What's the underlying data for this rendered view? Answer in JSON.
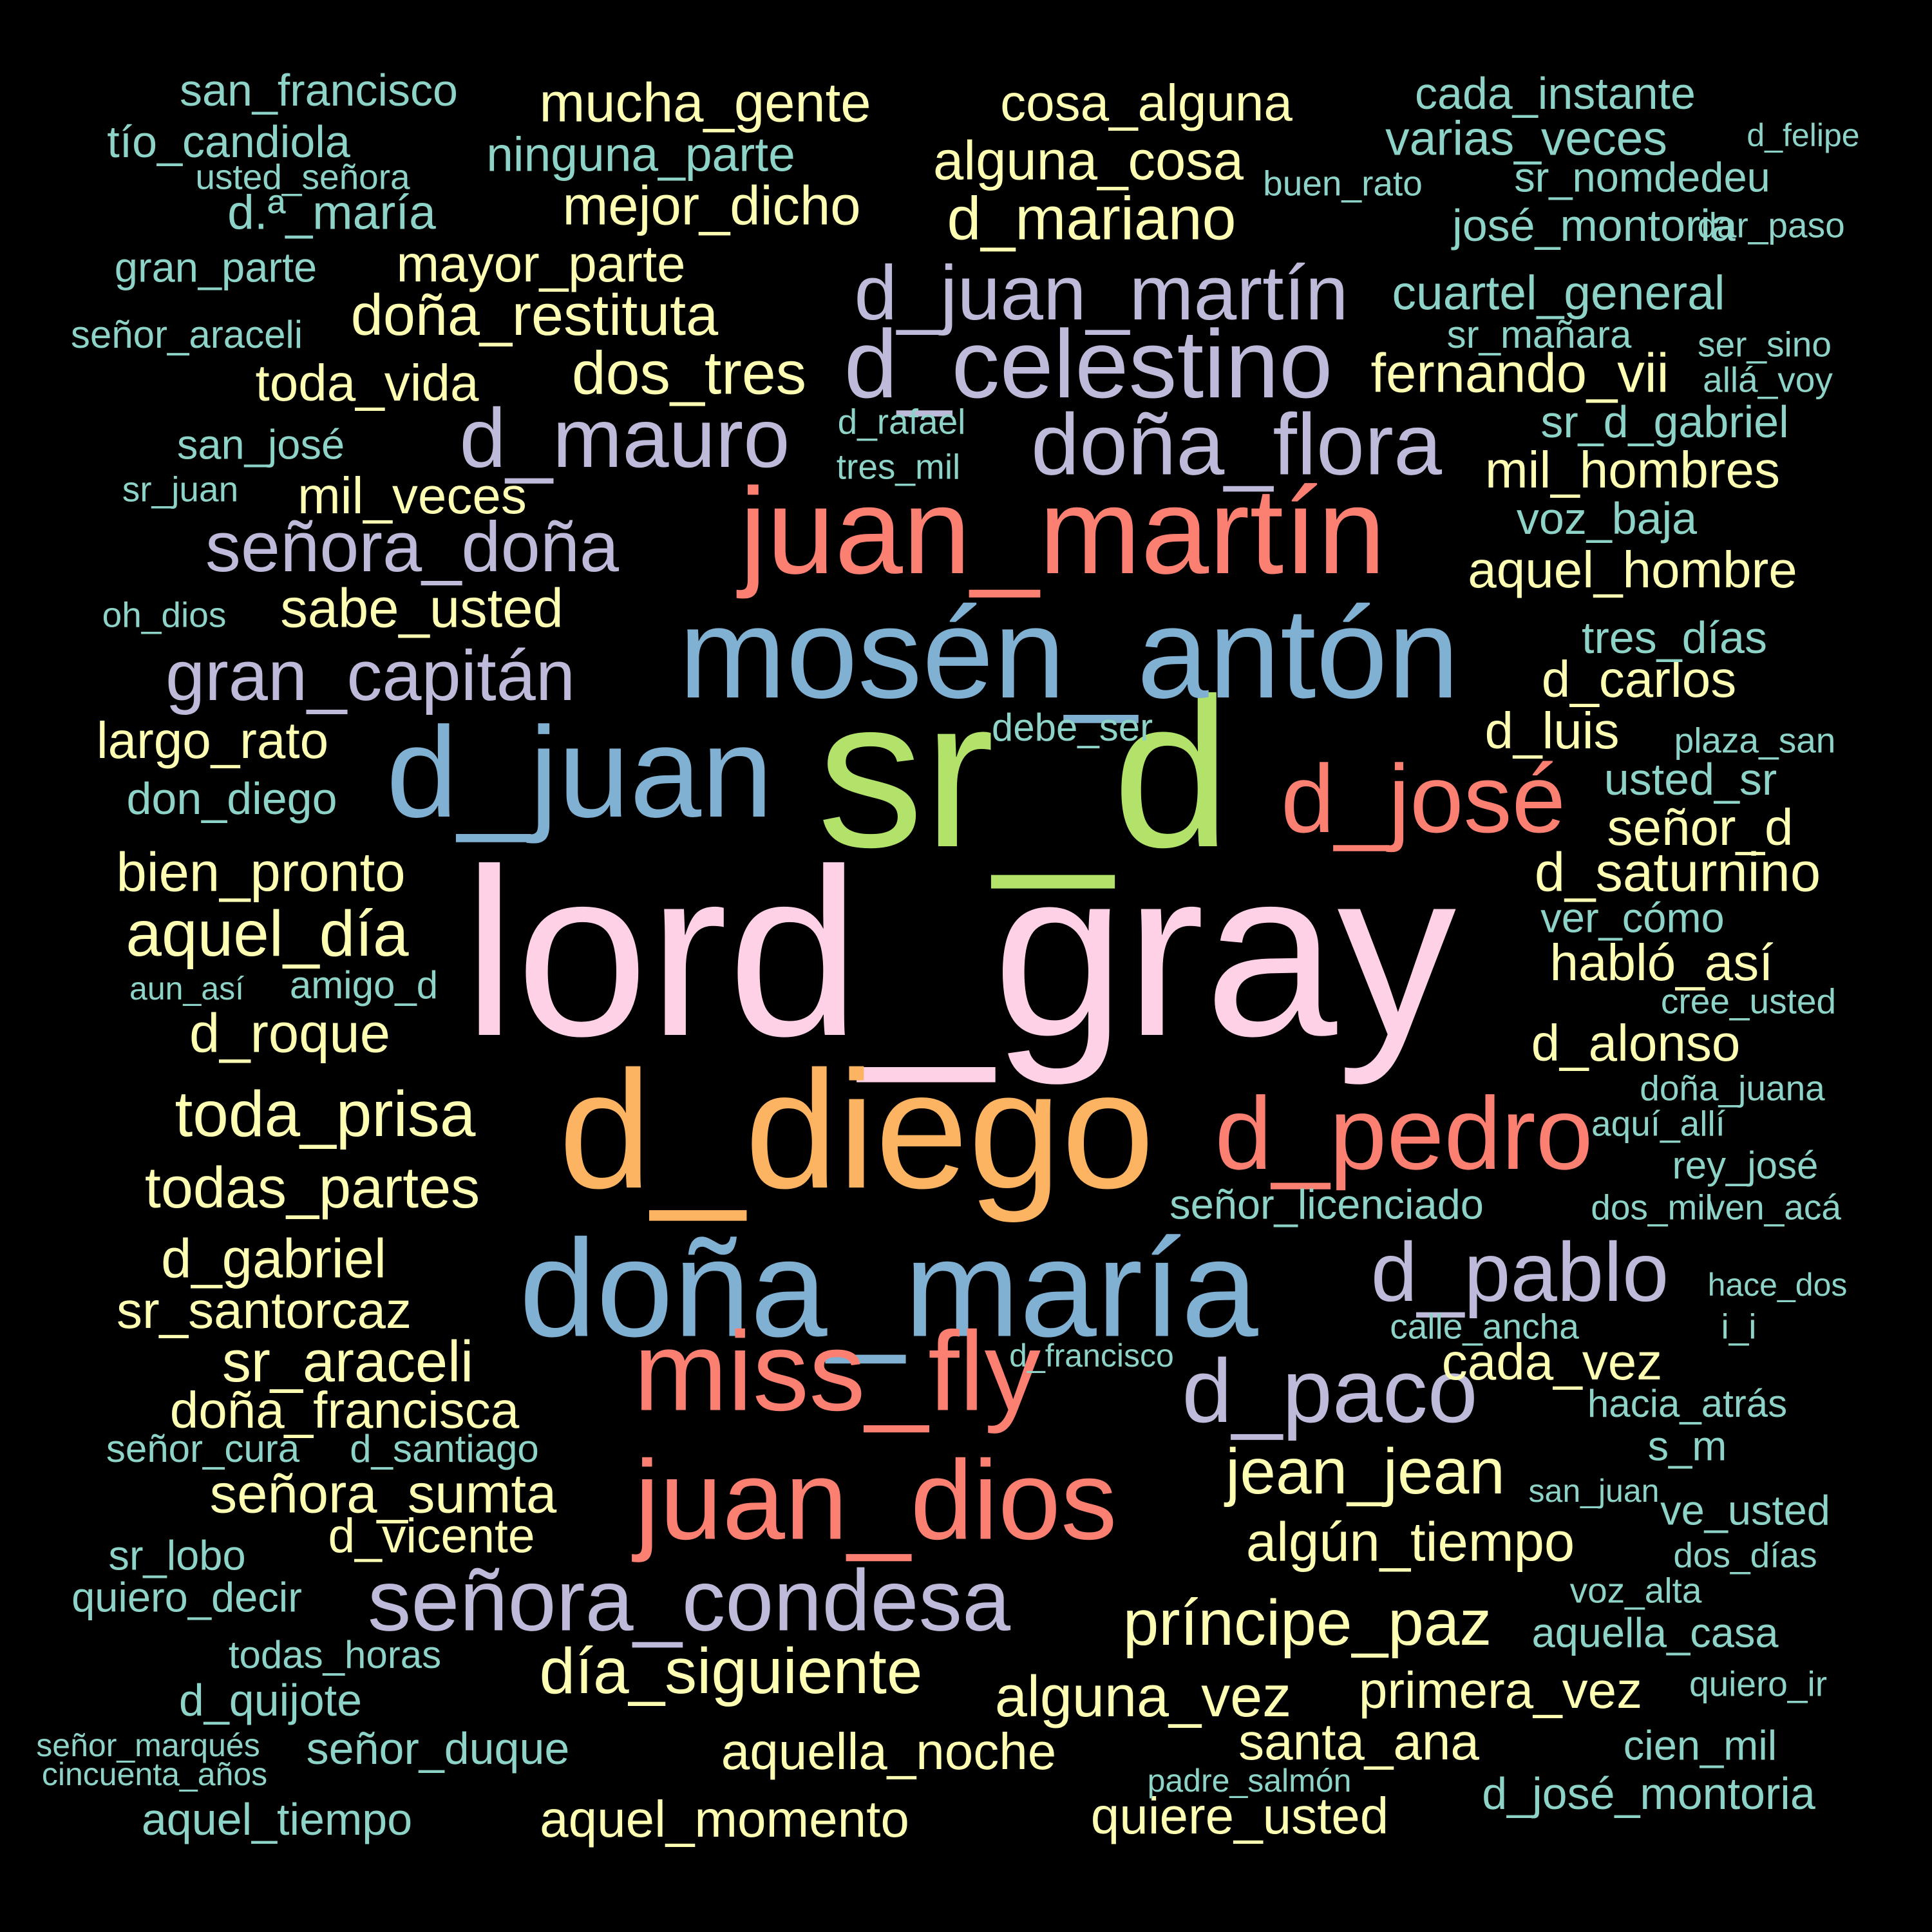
{
  "palette": {
    "pink": "#FFD1E6",
    "green": "#B3E26A",
    "blue": "#80B1D3",
    "orange": "#FDB462",
    "salmon": "#FB8072",
    "lavender": "#BEBADA",
    "yellow": "#FFFFB3",
    "teal": "#8DD3C7"
  },
  "words": [
    {
      "text": "lord_gray",
      "color": "#FFD1E6"
    },
    {
      "text": "sr_d",
      "color": "#B3E26A"
    },
    {
      "text": "mosén_antón",
      "color": "#80B1D3"
    },
    {
      "text": "d_diego",
      "color": "#FDB462"
    },
    {
      "text": "doña_maría",
      "color": "#80B1D3"
    },
    {
      "text": "d_juan",
      "color": "#80B1D3"
    },
    {
      "text": "juan_martín",
      "color": "#FB8072"
    },
    {
      "text": "miss_fly",
      "color": "#FB8072"
    },
    {
      "text": "juan_dios",
      "color": "#FB8072"
    },
    {
      "text": "d_pedro",
      "color": "#FB8072"
    },
    {
      "text": "d_josé",
      "color": "#FB8072"
    },
    {
      "text": "d_celestino",
      "color": "#BEBADA"
    },
    {
      "text": "d_juan_martín",
      "color": "#BEBADA"
    },
    {
      "text": "doña_flora",
      "color": "#BEBADA"
    },
    {
      "text": "d_mauro",
      "color": "#BEBADA"
    },
    {
      "text": "d_paco",
      "color": "#BEBADA"
    },
    {
      "text": "d_pablo",
      "color": "#BEBADA"
    },
    {
      "text": "señora_condesa",
      "color": "#BEBADA"
    },
    {
      "text": "señora_doña",
      "color": "#BEBADA"
    },
    {
      "text": "gran_capitán",
      "color": "#BEBADA"
    },
    {
      "text": "mucha_gente",
      "color": "#FFFFB3"
    },
    {
      "text": "cosa_alguna",
      "color": "#FFFFB3"
    },
    {
      "text": "alguna_cosa",
      "color": "#FFFFB3"
    },
    {
      "text": "mejor_dicho",
      "color": "#FFFFB3"
    },
    {
      "text": "d_mariano",
      "color": "#FFFFB3"
    },
    {
      "text": "mayor_parte",
      "color": "#FFFFB3"
    },
    {
      "text": "doña_restituta",
      "color": "#FFFFB3"
    },
    {
      "text": "dos_tres",
      "color": "#FFFFB3"
    },
    {
      "text": "toda_vida",
      "color": "#FFFFB3"
    },
    {
      "text": "fernando_vii",
      "color": "#FFFFB3"
    },
    {
      "text": "mil_hombres",
      "color": "#FFFFB3"
    },
    {
      "text": "mil_veces",
      "color": "#FFFFB3"
    },
    {
      "text": "aquel_hombre",
      "color": "#FFFFB3"
    },
    {
      "text": "sabe_usted",
      "color": "#FFFFB3"
    },
    {
      "text": "d_carlos",
      "color": "#FFFFB3"
    },
    {
      "text": "largo_rato",
      "color": "#FFFFB3"
    },
    {
      "text": "d_luis",
      "color": "#FFFFB3"
    },
    {
      "text": "señor_d",
      "color": "#FFFFB3"
    },
    {
      "text": "bien_pronto",
      "color": "#FFFFB3"
    },
    {
      "text": "d_saturnino",
      "color": "#FFFFB3"
    },
    {
      "text": "aquel_día",
      "color": "#FFFFB3"
    },
    {
      "text": "habló_así",
      "color": "#FFFFB3"
    },
    {
      "text": "d_roque",
      "color": "#FFFFB3"
    },
    {
      "text": "d_alonso",
      "color": "#FFFFB3"
    },
    {
      "text": "toda_prisa",
      "color": "#FFFFB3"
    },
    {
      "text": "todas_partes",
      "color": "#FFFFB3"
    },
    {
      "text": "d_gabriel",
      "color": "#FFFFB3"
    },
    {
      "text": "sr_santorcaz",
      "color": "#FFFFB3"
    },
    {
      "text": "sr_araceli",
      "color": "#FFFFB3"
    },
    {
      "text": "cada_vez",
      "color": "#FFFFB3"
    },
    {
      "text": "doña_francisca",
      "color": "#FFFFB3"
    },
    {
      "text": "jean_jean",
      "color": "#FFFFB3"
    },
    {
      "text": "señora_sumta",
      "color": "#FFFFB3"
    },
    {
      "text": "d_vicente",
      "color": "#FFFFB3"
    },
    {
      "text": "algún_tiempo",
      "color": "#FFFFB3"
    },
    {
      "text": "príncipe_paz",
      "color": "#FFFFB3"
    },
    {
      "text": "día_siguiente",
      "color": "#FFFFB3"
    },
    {
      "text": "alguna_vez",
      "color": "#FFFFB3"
    },
    {
      "text": "primera_vez",
      "color": "#FFFFB3"
    },
    {
      "text": "santa_ana",
      "color": "#FFFFB3"
    },
    {
      "text": "aquella_noche",
      "color": "#FFFFB3"
    },
    {
      "text": "aquel_momento",
      "color": "#FFFFB3"
    },
    {
      "text": "quiere_usted",
      "color": "#FFFFB3"
    },
    {
      "text": "san_francisco",
      "color": "#8DD3C7"
    },
    {
      "text": "cada_instante",
      "color": "#8DD3C7"
    },
    {
      "text": "tío_candiola",
      "color": "#8DD3C7"
    },
    {
      "text": "ninguna_parte",
      "color": "#8DD3C7"
    },
    {
      "text": "varias_veces",
      "color": "#8DD3C7"
    },
    {
      "text": "d_felipe",
      "color": "#8DD3C7"
    },
    {
      "text": "usted_señora",
      "color": "#8DD3C7"
    },
    {
      "text": "buen_rato",
      "color": "#8DD3C7"
    },
    {
      "text": "sr_nomdedeu",
      "color": "#8DD3C7"
    },
    {
      "text": "d.ª_maría",
      "color": "#8DD3C7"
    },
    {
      "text": "josé_montoria",
      "color": "#8DD3C7"
    },
    {
      "text": "dar_paso",
      "color": "#8DD3C7"
    },
    {
      "text": "gran_parte",
      "color": "#8DD3C7"
    },
    {
      "text": "cuartel_general",
      "color": "#8DD3C7"
    },
    {
      "text": "sr_mañara",
      "color": "#8DD3C7"
    },
    {
      "text": "señor_araceli",
      "color": "#8DD3C7"
    },
    {
      "text": "ser_sino",
      "color": "#8DD3C7"
    },
    {
      "text": "allá_voy",
      "color": "#8DD3C7"
    },
    {
      "text": "d_rafael",
      "color": "#8DD3C7"
    },
    {
      "text": "sr_d_gabriel",
      "color": "#8DD3C7"
    },
    {
      "text": "san_josé",
      "color": "#8DD3C7"
    },
    {
      "text": "tres_mil",
      "color": "#8DD3C7"
    },
    {
      "text": "sr_juan",
      "color": "#8DD3C7"
    },
    {
      "text": "voz_baja",
      "color": "#8DD3C7"
    },
    {
      "text": "oh_dios",
      "color": "#8DD3C7"
    },
    {
      "text": "tres_días",
      "color": "#8DD3C7"
    },
    {
      "text": "debe_ser",
      "color": "#8DD3C7"
    },
    {
      "text": "plaza_san",
      "color": "#8DD3C7"
    },
    {
      "text": "don_diego",
      "color": "#8DD3C7"
    },
    {
      "text": "usted_sr",
      "color": "#8DD3C7"
    },
    {
      "text": "ver_cómo",
      "color": "#8DD3C7"
    },
    {
      "text": "aun_así",
      "color": "#8DD3C7"
    },
    {
      "text": "amigo_d",
      "color": "#8DD3C7"
    },
    {
      "text": "cree_usted",
      "color": "#8DD3C7"
    },
    {
      "text": "doña_juana",
      "color": "#8DD3C7"
    },
    {
      "text": "aquí_allí",
      "color": "#8DD3C7"
    },
    {
      "text": "rey_josé",
      "color": "#8DD3C7"
    },
    {
      "text": "ven_acá",
      "color": "#8DD3C7"
    },
    {
      "text": "señor_licenciado",
      "color": "#8DD3C7"
    },
    {
      "text": "dos_mil",
      "color": "#8DD3C7"
    },
    {
      "text": "hace_dos",
      "color": "#8DD3C7"
    },
    {
      "text": "calle_ancha",
      "color": "#8DD3C7"
    },
    {
      "text": "i_i",
      "color": "#8DD3C7"
    },
    {
      "text": "d_francisco",
      "color": "#8DD3C7"
    },
    {
      "text": "hacia_atrás",
      "color": "#8DD3C7"
    },
    {
      "text": "señor_cura",
      "color": "#8DD3C7"
    },
    {
      "text": "d_santiago",
      "color": "#8DD3C7"
    },
    {
      "text": "s_m",
      "color": "#8DD3C7"
    },
    {
      "text": "san_juan",
      "color": "#8DD3C7"
    },
    {
      "text": "ve_usted",
      "color": "#8DD3C7"
    },
    {
      "text": "sr_lobo",
      "color": "#8DD3C7"
    },
    {
      "text": "dos_días",
      "color": "#8DD3C7"
    },
    {
      "text": "voz_alta",
      "color": "#8DD3C7"
    },
    {
      "text": "quiero_decir",
      "color": "#8DD3C7"
    },
    {
      "text": "todas_horas",
      "color": "#8DD3C7"
    },
    {
      "text": "aquella_casa",
      "color": "#8DD3C7"
    },
    {
      "text": "d_quijote",
      "color": "#8DD3C7"
    },
    {
      "text": "quiero_ir",
      "color": "#8DD3C7"
    },
    {
      "text": "señor_marqués",
      "color": "#8DD3C7"
    },
    {
      "text": "señor_duque",
      "color": "#8DD3C7"
    },
    {
      "text": "cien_mil",
      "color": "#8DD3C7"
    },
    {
      "text": "cincuenta_años",
      "color": "#8DD3C7"
    },
    {
      "text": "padre_salmón",
      "color": "#8DD3C7"
    },
    {
      "text": "d_josé_montoria",
      "color": "#8DD3C7"
    },
    {
      "text": "aquel_tiempo",
      "color": "#8DD3C7"
    }
  ]
}
